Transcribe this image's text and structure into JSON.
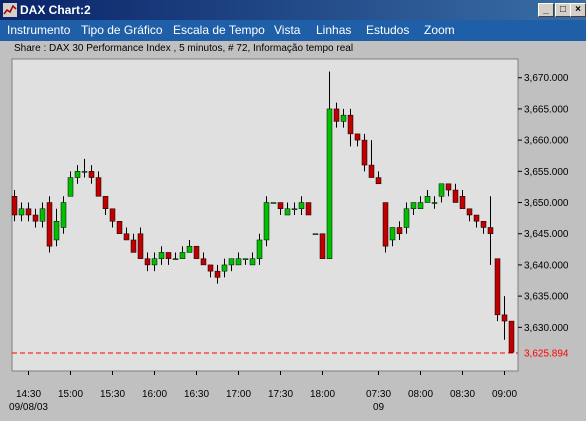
{
  "window": {
    "title": "DAX Chart:2",
    "controls": {
      "minimize": "_",
      "maximize": "□",
      "close": "×"
    }
  },
  "menu": [
    "Instrumento",
    "Tipo de Gráfico",
    "Escala de Tempo",
    "Vista",
    "Linhas",
    "Estudos",
    "Zoom"
  ],
  "chart_data": {
    "type": "candlestick",
    "title": "Share : DAX 30 Performance Index , 5 minutos, # 72, Informação tempo real",
    "interval": "5 minutos",
    "ylim": [
      3623,
      3673
    ],
    "yticks": [
      3630,
      3635,
      3640,
      3645,
      3650,
      3655,
      3660,
      3665,
      3670
    ],
    "ytick_labels": [
      "3,630.000",
      "3,635.000",
      "3,640.000",
      "3,645.000",
      "3,650.000",
      "3,655.000",
      "3,660.000",
      "3,665.000",
      "3,670.000"
    ],
    "last_price": 3625.894,
    "last_price_label": "3,625.894",
    "last_price_color": "#ff0000",
    "up_color": "#00c000",
    "down_color": "#c00000",
    "x_tick_labels": [
      "14:30",
      "15:00",
      "15:30",
      "16:00",
      "16:30",
      "17:00",
      "17:30",
      "18:00",
      "07:30",
      "08:00",
      "08:30",
      "09:00"
    ],
    "x_tick_positions": [
      2,
      8,
      14,
      20,
      26,
      32,
      38,
      44,
      52,
      58,
      64,
      70
    ],
    "x_sub_labels": [
      {
        "text": "09/08/03",
        "index": 2
      },
      {
        "text": "09",
        "index": 52
      }
    ],
    "candles": [
      {
        "o": 3651,
        "h": 3652,
        "l": 3647,
        "c": 3648
      },
      {
        "o": 3648,
        "h": 3650,
        "l": 3647,
        "c": 3649
      },
      {
        "o": 3649,
        "h": 3650,
        "l": 3647,
        "c": 3648
      },
      {
        "o": 3648,
        "h": 3649,
        "l": 3646,
        "c": 3647
      },
      {
        "o": 3647,
        "h": 3650,
        "l": 3646,
        "c": 3649
      },
      {
        "o": 3650,
        "h": 3651,
        "l": 3642,
        "c": 3643
      },
      {
        "o": 3644,
        "h": 3649,
        "l": 3643,
        "c": 3647
      },
      {
        "o": 3646,
        "h": 3651,
        "l": 3645,
        "c": 3650
      },
      {
        "o": 3651,
        "h": 3655,
        "l": 3651,
        "c": 3654
      },
      {
        "o": 3654,
        "h": 3656,
        "l": 3653,
        "c": 3655
      },
      {
        "o": 3655,
        "h": 3657,
        "l": 3654,
        "c": 3655
      },
      {
        "o": 3655,
        "h": 3656,
        "l": 3653,
        "c": 3654
      },
      {
        "o": 3654,
        "h": 3655,
        "l": 3651,
        "c": 3651
      },
      {
        "o": 3651,
        "h": 3651,
        "l": 3648,
        "c": 3649
      },
      {
        "o": 3649,
        "h": 3649,
        "l": 3646,
        "c": 3647
      },
      {
        "o": 3647,
        "h": 3647,
        "l": 3645,
        "c": 3645
      },
      {
        "o": 3645,
        "h": 3646,
        "l": 3644,
        "c": 3644
      },
      {
        "o": 3644,
        "h": 3645,
        "l": 3642,
        "c": 3642
      },
      {
        "o": 3645,
        "h": 3646,
        "l": 3641,
        "c": 3641
      },
      {
        "o": 3641,
        "h": 3642,
        "l": 3639,
        "c": 3640
      },
      {
        "o": 3640,
        "h": 3642,
        "l": 3639,
        "c": 3641
      },
      {
        "o": 3641,
        "h": 3643,
        "l": 3640,
        "c": 3642
      },
      {
        "o": 3642,
        "h": 3642,
        "l": 3640,
        "c": 3641
      },
      {
        "o": 3641,
        "h": 3642,
        "l": 3641,
        "c": 3641
      },
      {
        "o": 3641,
        "h": 3643,
        "l": 3641,
        "c": 3642
      },
      {
        "o": 3642,
        "h": 3644,
        "l": 3642,
        "c": 3643
      },
      {
        "o": 3643,
        "h": 3643,
        "l": 3641,
        "c": 3641
      },
      {
        "o": 3641,
        "h": 3642,
        "l": 3640,
        "c": 3640
      },
      {
        "o": 3640,
        "h": 3640,
        "l": 3638,
        "c": 3639
      },
      {
        "o": 3639,
        "h": 3640,
        "l": 3637,
        "c": 3638
      },
      {
        "o": 3639,
        "h": 3641,
        "l": 3638,
        "c": 3640
      },
      {
        "o": 3640,
        "h": 3641,
        "l": 3639,
        "c": 3641
      },
      {
        "o": 3640,
        "h": 3642,
        "l": 3640,
        "c": 3641
      },
      {
        "o": 3641,
        "h": 3641,
        "l": 3640,
        "c": 3641
      },
      {
        "o": 3640,
        "h": 3642,
        "l": 3640,
        "c": 3641
      },
      {
        "o": 3641,
        "h": 3645,
        "l": 3640,
        "c": 3644
      },
      {
        "o": 3644,
        "h": 3651,
        "l": 3643,
        "c": 3650
      },
      {
        "o": 3650,
        "h": 3650,
        "l": 3650,
        "c": 3650
      },
      {
        "o": 3650,
        "h": 3650,
        "l": 3648,
        "c": 3649
      },
      {
        "o": 3648,
        "h": 3650,
        "l": 3648,
        "c": 3649
      },
      {
        "o": 3649,
        "h": 3650,
        "l": 3648,
        "c": 3649
      },
      {
        "o": 3649,
        "h": 3651,
        "l": 3648,
        "c": 3650
      },
      {
        "o": 3650,
        "h": 3650,
        "l": 3648,
        "c": 3648
      },
      {
        "o": 3645,
        "h": 3645,
        "l": 3645,
        "c": 3645
      },
      {
        "o": 3645,
        "h": 3645,
        "l": 3641,
        "c": 3641
      },
      {
        "o": 3641,
        "h": 3671,
        "l": 3641,
        "c": 3665
      },
      {
        "o": 3665,
        "h": 3666,
        "l": 3662,
        "c": 3663
      },
      {
        "o": 3663,
        "h": 3665,
        "l": 3662,
        "c": 3664
      },
      {
        "o": 3664,
        "h": 3665,
        "l": 3659,
        "c": 3661
      },
      {
        "o": 3661,
        "h": 3661,
        "l": 3659,
        "c": 3660
      },
      {
        "o": 3660,
        "h": 3661,
        "l": 3655,
        "c": 3656
      },
      {
        "o": 3656,
        "h": 3660,
        "l": 3654,
        "c": 3654
      },
      {
        "o": 3654,
        "h": 3655,
        "l": 3653,
        "c": 3653
      },
      {
        "o": 3650,
        "h": 3650,
        "l": 3642,
        "c": 3643
      },
      {
        "o": 3644,
        "h": 3646,
        "l": 3643,
        "c": 3646
      },
      {
        "o": 3646,
        "h": 3647,
        "l": 3644,
        "c": 3645
      },
      {
        "o": 3646,
        "h": 3650,
        "l": 3645,
        "c": 3649
      },
      {
        "o": 3649,
        "h": 3650,
        "l": 3648,
        "c": 3650
      },
      {
        "o": 3649,
        "h": 3651,
        "l": 3649,
        "c": 3650
      },
      {
        "o": 3650,
        "h": 3652,
        "l": 3650,
        "c": 3651
      },
      {
        "o": 3650,
        "h": 3651,
        "l": 3649,
        "c": 3650
      },
      {
        "o": 3651,
        "h": 3653,
        "l": 3650,
        "c": 3653
      },
      {
        "o": 3653,
        "h": 3653,
        "l": 3651,
        "c": 3652
      },
      {
        "o": 3652,
        "h": 3653,
        "l": 3650,
        "c": 3650
      },
      {
        "o": 3651,
        "h": 3652,
        "l": 3649,
        "c": 3649
      },
      {
        "o": 3649,
        "h": 3649,
        "l": 3647,
        "c": 3648
      },
      {
        "o": 3648,
        "h": 3648,
        "l": 3646,
        "c": 3647
      },
      {
        "o": 3647,
        "h": 3647,
        "l": 3645,
        "c": 3646
      },
      {
        "o": 3646,
        "h": 3651,
        "l": 3640,
        "c": 3645
      },
      {
        "o": 3641,
        "h": 3641,
        "l": 3631,
        "c": 3632
      },
      {
        "o": 3632,
        "h": 3635,
        "l": 3628,
        "c": 3631
      },
      {
        "o": 3631,
        "h": 3631,
        "l": 3626,
        "c": 3626
      }
    ]
  }
}
